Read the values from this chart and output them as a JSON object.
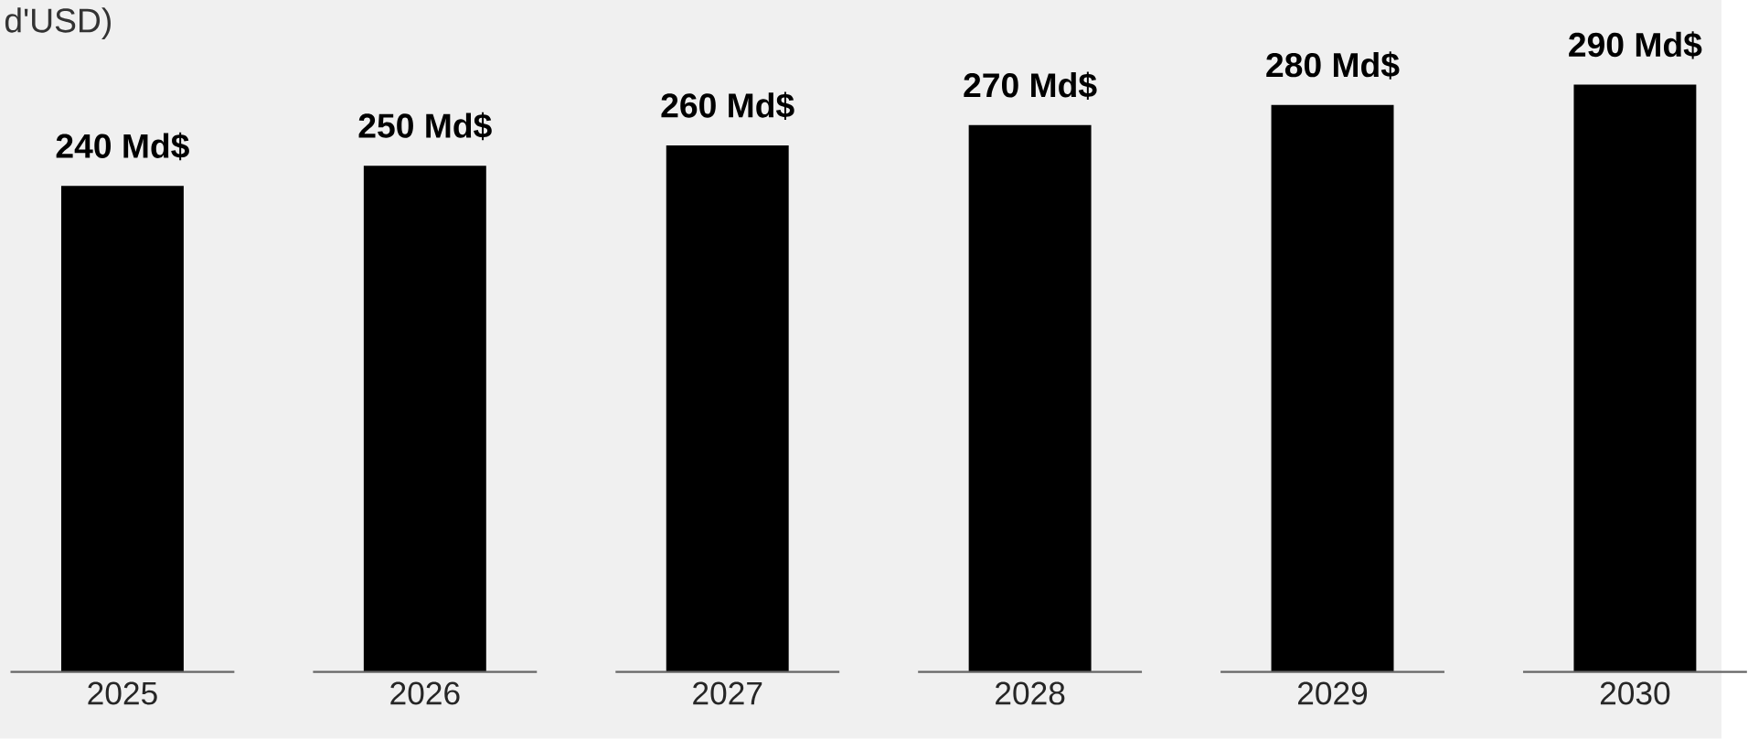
{
  "chart_data": {
    "type": "bar",
    "title": "d'USD)",
    "categories": [
      "2025",
      "2026",
      "2027",
      "2028",
      "2029",
      "2030"
    ],
    "values": [
      240,
      250,
      260,
      270,
      280,
      290
    ],
    "value_labels": [
      "240 Md$",
      "250 Md$",
      "260 Md$",
      "270 Md$",
      "280 Md$",
      "290 Md$"
    ],
    "color": "#000000"
  }
}
